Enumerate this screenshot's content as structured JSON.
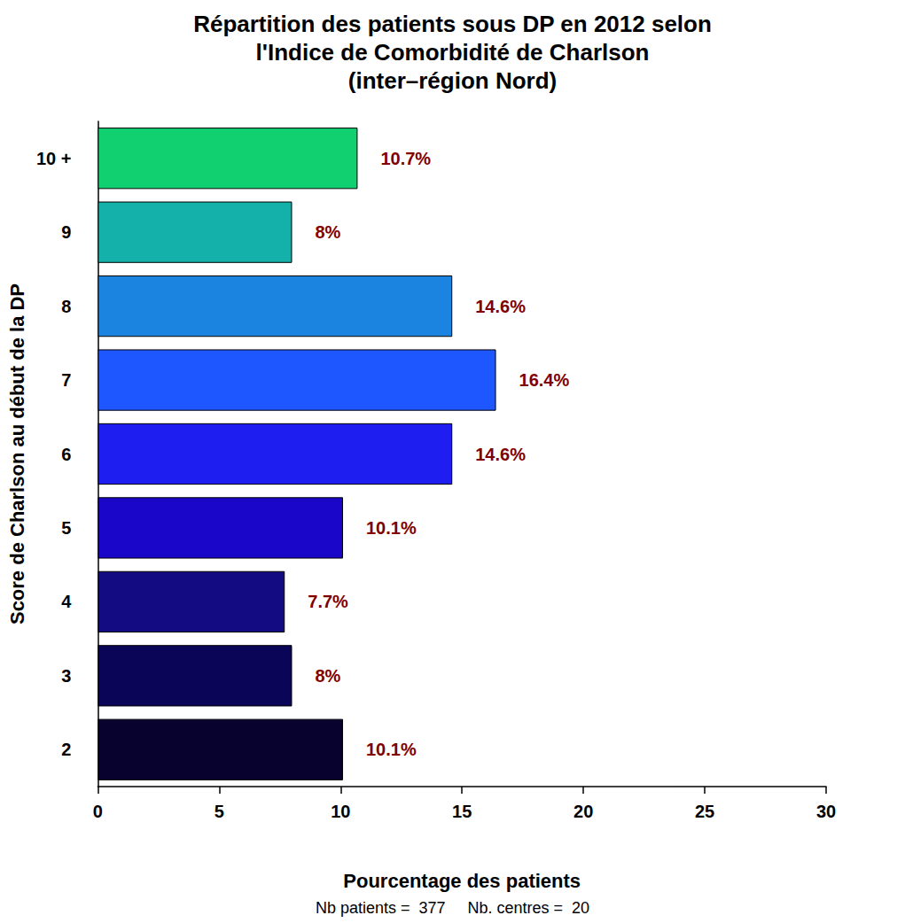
{
  "chart_data": {
    "type": "bar",
    "orientation": "horizontal",
    "title": "Répartition des patients sous DP en 2012 selon\nl'Indice de Comorbidité de Charlson\n(inter–région Nord)",
    "x_label": "Pourcentage des patients",
    "y_label": "Score de Charlson au début de la DP",
    "annotations": [
      "Nb patients =  377     Nb. centres =  20"
    ],
    "categories": [
      "2",
      "3",
      "4",
      "5",
      "6",
      "7",
      "8",
      "9",
      "10 +"
    ],
    "values": [
      10.1,
      8,
      7.7,
      10.1,
      14.6,
      16.4,
      14.6,
      8,
      10.7
    ],
    "value_labels": [
      "10.1%",
      "8%",
      "7.7%",
      "10.1%",
      "14.6%",
      "16.4%",
      "14.6%",
      "8%",
      "10.7%"
    ],
    "colors": [
      "#07032e",
      "#0b0558",
      "#130b82",
      "#1a06c8",
      "#1e1ef0",
      "#1e56ff",
      "#1a84e0",
      "#14b0aa",
      "#10d070"
    ],
    "data_labels": true,
    "xlim": [
      0,
      30
    ],
    "xticks": [
      0,
      5,
      10,
      15,
      20,
      25,
      30
    ],
    "grid": false
  }
}
